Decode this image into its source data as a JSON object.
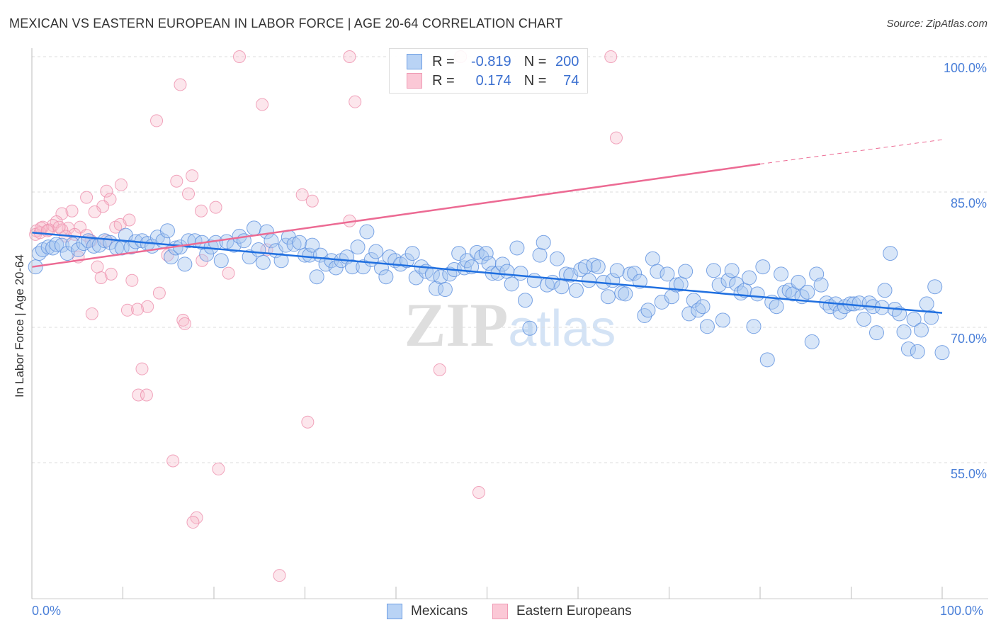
{
  "title": "MEXICAN VS EASTERN EUROPEAN IN LABOR FORCE | AGE 20-64 CORRELATION CHART",
  "source": "Source: ZipAtlas.com",
  "watermark": "ZIPatlas",
  "colors": {
    "blue": "#5b8fdf",
    "blue_fill": "#a9c8f0",
    "pink": "#ee8fac",
    "pink_fill": "#f7b6c8",
    "blue_line": "#1f6fe0",
    "pink_line": "#ec6a93",
    "tick_text": "#4a7fd8"
  },
  "legend": {
    "rows": [
      {
        "r_label": "R =",
        "r_value": "-0.819",
        "n_label": "N =",
        "n_value": "200"
      },
      {
        "r_label": "R =",
        "r_value": "0.174",
        "n_label": "N =",
        "n_value": "74"
      }
    ]
  },
  "chart_data": {
    "type": "scatter",
    "title": "MEXICAN VS EASTERN EUROPEAN IN LABOR FORCE | AGE 20-64 CORRELATION CHART",
    "xlabel": "",
    "ylabel": "In Labor Force | Age 20-64",
    "xlim": [
      0,
      100
    ],
    "ylim": [
      40,
      101
    ],
    "x_tick_labels": [
      "0.0%",
      "100.0%"
    ],
    "y_ticks": [
      100,
      85,
      70,
      55
    ],
    "y_tick_labels": [
      "100.0%",
      "85.0%",
      "70.0%",
      "55.0%"
    ],
    "grid": true,
    "legend_position": "top-center",
    "series": [
      {
        "name": "Mexicans",
        "trend": {
          "x": [
            0,
            100
          ],
          "y": [
            80.5,
            71.6
          ]
        },
        "points": [
          [
            0.4,
            76.7
          ],
          [
            0.8,
            78.2
          ],
          [
            1.2,
            78.6
          ],
          [
            1.8,
            78.9
          ],
          [
            2.3,
            78.8
          ],
          [
            2.7,
            79.2
          ],
          [
            3.3,
            79.1
          ],
          [
            3.9,
            78.2
          ],
          [
            4.5,
            79.2
          ],
          [
            5.1,
            78.6
          ],
          [
            5.7,
            79.3
          ],
          [
            6.2,
            79.6
          ],
          [
            6.8,
            79.0
          ],
          [
            7.4,
            79.1
          ],
          [
            8.0,
            79.6
          ],
          [
            8.6,
            79.4
          ],
          [
            9.3,
            78.8
          ],
          [
            9.9,
            78.8
          ],
          [
            10.3,
            80.2
          ],
          [
            10.9,
            78.9
          ],
          [
            11.4,
            79.5
          ],
          [
            12.1,
            79.6
          ],
          [
            12.7,
            79.3
          ],
          [
            13.2,
            79.0
          ],
          [
            13.8,
            80.0
          ],
          [
            14.4,
            79.6
          ],
          [
            14.9,
            80.7
          ],
          [
            15.3,
            77.8
          ],
          [
            15.8,
            78.8
          ],
          [
            16.3,
            78.9
          ],
          [
            16.8,
            77.0
          ],
          [
            17.2,
            79.6
          ],
          [
            17.9,
            79.6
          ],
          [
            18.7,
            79.4
          ],
          [
            19.2,
            78.1
          ],
          [
            19.7,
            78.9
          ],
          [
            20.2,
            79.4
          ],
          [
            20.8,
            77.4
          ],
          [
            21.4,
            79.5
          ],
          [
            22.2,
            79.1
          ],
          [
            22.8,
            80.1
          ],
          [
            23.3,
            79.6
          ],
          [
            23.9,
            77.8
          ],
          [
            24.4,
            81.0
          ],
          [
            24.9,
            78.6
          ],
          [
            25.4,
            77.2
          ],
          [
            25.8,
            80.6
          ],
          [
            26.3,
            79.6
          ],
          [
            26.8,
            78.5
          ],
          [
            27.4,
            77.4
          ],
          [
            27.9,
            79.1
          ],
          [
            28.2,
            80.0
          ],
          [
            28.8,
            79.2
          ],
          [
            29.4,
            79.4
          ],
          [
            30.0,
            78.0
          ],
          [
            30.5,
            78.0
          ],
          [
            30.8,
            79.1
          ],
          [
            31.3,
            75.6
          ],
          [
            31.7,
            78.0
          ],
          [
            32.3,
            77.0
          ],
          [
            32.9,
            77.4
          ],
          [
            33.4,
            76.6
          ],
          [
            34.0,
            77.4
          ],
          [
            34.6,
            77.8
          ],
          [
            35.2,
            76.7
          ],
          [
            35.8,
            78.9
          ],
          [
            36.4,
            76.7
          ],
          [
            36.8,
            80.6
          ],
          [
            37.3,
            77.5
          ],
          [
            37.8,
            78.4
          ],
          [
            38.4,
            76.6
          ],
          [
            38.9,
            75.6
          ],
          [
            39.3,
            77.8
          ],
          [
            39.9,
            77.4
          ],
          [
            40.5,
            77.0
          ],
          [
            41.2,
            77.4
          ],
          [
            41.8,
            78.2
          ],
          [
            42.2,
            75.5
          ],
          [
            42.8,
            76.7
          ],
          [
            43.3,
            76.2
          ],
          [
            44.0,
            75.9
          ],
          [
            44.4,
            74.3
          ],
          [
            44.9,
            75.6
          ],
          [
            45.4,
            74.2
          ],
          [
            45.9,
            75.9
          ],
          [
            46.4,
            76.4
          ],
          [
            46.9,
            78.2
          ],
          [
            47.5,
            76.6
          ],
          [
            47.8,
            77.4
          ],
          [
            48.3,
            76.7
          ],
          [
            48.9,
            78.3
          ],
          [
            49.4,
            77.8
          ],
          [
            49.9,
            78.2
          ],
          [
            50.2,
            77.1
          ],
          [
            50.6,
            76.0
          ],
          [
            51.2,
            76.0
          ],
          [
            51.7,
            77.0
          ],
          [
            52.2,
            76.2
          ],
          [
            52.7,
            74.8
          ],
          [
            53.3,
            78.8
          ],
          [
            53.7,
            76.0
          ],
          [
            54.2,
            73.0
          ],
          [
            54.7,
            69.9
          ],
          [
            55.2,
            75.2
          ],
          [
            55.8,
            78.0
          ],
          [
            56.2,
            79.4
          ],
          [
            56.6,
            74.7
          ],
          [
            57.2,
            75.0
          ],
          [
            57.7,
            77.6
          ],
          [
            58.2,
            74.5
          ],
          [
            58.7,
            75.9
          ],
          [
            59.2,
            75.8
          ],
          [
            59.8,
            74.1
          ],
          [
            60.3,
            76.4
          ],
          [
            60.8,
            76.7
          ],
          [
            61.2,
            75.2
          ],
          [
            61.7,
            76.9
          ],
          [
            62.2,
            76.7
          ],
          [
            62.8,
            75.0
          ],
          [
            63.3,
            73.4
          ],
          [
            63.8,
            75.2
          ],
          [
            64.3,
            76.3
          ],
          [
            64.8,
            73.8
          ],
          [
            65.2,
            73.7
          ],
          [
            65.7,
            75.9
          ],
          [
            66.2,
            76.0
          ],
          [
            66.8,
            75.1
          ],
          [
            67.3,
            71.3
          ],
          [
            67.7,
            71.9
          ],
          [
            68.2,
            77.6
          ],
          [
            68.7,
            76.2
          ],
          [
            69.2,
            72.8
          ],
          [
            69.8,
            75.9
          ],
          [
            70.3,
            73.4
          ],
          [
            70.8,
            74.7
          ],
          [
            71.3,
            74.8
          ],
          [
            71.8,
            76.2
          ],
          [
            72.2,
            71.5
          ],
          [
            72.7,
            73.0
          ],
          [
            73.2,
            71.9
          ],
          [
            73.7,
            72.3
          ],
          [
            74.2,
            70.1
          ],
          [
            74.9,
            76.3
          ],
          [
            75.5,
            74.7
          ],
          [
            75.9,
            70.8
          ],
          [
            76.5,
            75.2
          ],
          [
            76.9,
            76.3
          ],
          [
            77.4,
            74.8
          ],
          [
            77.9,
            73.8
          ],
          [
            78.3,
            74.1
          ],
          [
            78.8,
            75.5
          ],
          [
            79.3,
            70.1
          ],
          [
            79.7,
            73.7
          ],
          [
            80.3,
            76.7
          ],
          [
            80.8,
            66.4
          ],
          [
            81.3,
            72.8
          ],
          [
            81.8,
            72.3
          ],
          [
            82.3,
            75.9
          ],
          [
            82.7,
            73.9
          ],
          [
            83.2,
            74.1
          ],
          [
            83.6,
            73.7
          ],
          [
            84.2,
            75.0
          ],
          [
            84.6,
            73.4
          ],
          [
            85.2,
            73.9
          ],
          [
            85.7,
            68.4
          ],
          [
            86.2,
            75.9
          ],
          [
            86.7,
            74.7
          ],
          [
            87.3,
            72.7
          ],
          [
            87.7,
            72.3
          ],
          [
            88.3,
            72.6
          ],
          [
            88.8,
            71.7
          ],
          [
            89.3,
            72.3
          ],
          [
            89.9,
            72.6
          ],
          [
            90.3,
            72.6
          ],
          [
            90.9,
            72.7
          ],
          [
            91.4,
            70.9
          ],
          [
            92.0,
            72.7
          ],
          [
            92.4,
            72.3
          ],
          [
            92.8,
            69.4
          ],
          [
            93.4,
            72.2
          ],
          [
            93.7,
            74.1
          ],
          [
            94.3,
            78.2
          ],
          [
            94.8,
            72.0
          ],
          [
            95.3,
            71.5
          ],
          [
            95.8,
            69.5
          ],
          [
            96.3,
            67.6
          ],
          [
            96.9,
            70.9
          ],
          [
            97.3,
            67.3
          ],
          [
            97.7,
            69.7
          ],
          [
            98.3,
            72.6
          ],
          [
            98.8,
            71.1
          ],
          [
            99.2,
            74.5
          ],
          [
            100.0,
            67.2
          ]
        ]
      },
      {
        "name": "Eastern Europeans",
        "trend": {
          "x": [
            0,
            80
          ],
          "y": [
            76.7,
            88.1
          ],
          "dashed_to": {
            "x": 100,
            "y": 90.8
          }
        },
        "points": [
          [
            22.8,
            100
          ],
          [
            34.9,
            100
          ],
          [
            63.6,
            100
          ],
          [
            47.1,
            100
          ],
          [
            16.3,
            96.9
          ],
          [
            25.3,
            94.7
          ],
          [
            35.5,
            95.0
          ],
          [
            13.7,
            92.9
          ],
          [
            64.2,
            91.0
          ],
          [
            17.6,
            86.8
          ],
          [
            15.9,
            86.2
          ],
          [
            9.8,
            85.8
          ],
          [
            8.2,
            85.1
          ],
          [
            17.2,
            84.8
          ],
          [
            6.0,
            84.4
          ],
          [
            8.6,
            84.2
          ],
          [
            29.7,
            84.7
          ],
          [
            30.8,
            84.0
          ],
          [
            7.8,
            83.4
          ],
          [
            20.2,
            83.3
          ],
          [
            18.6,
            82.9
          ],
          [
            10.7,
            81.9
          ],
          [
            6.9,
            82.8
          ],
          [
            3.3,
            82.6
          ],
          [
            4.4,
            82.9
          ],
          [
            34.9,
            81.8
          ],
          [
            9.2,
            81.1
          ],
          [
            2.7,
            81.7
          ],
          [
            2.3,
            81.3
          ],
          [
            5.3,
            81.1
          ],
          [
            4.0,
            81.0
          ],
          [
            1.2,
            81.1
          ],
          [
            0.5,
            80.7
          ],
          [
            0.4,
            80.3
          ],
          [
            1.9,
            80.8
          ],
          [
            6.0,
            80.2
          ],
          [
            6.5,
            79.6
          ],
          [
            3.3,
            80.8
          ],
          [
            5.1,
            77.8
          ],
          [
            7.2,
            76.7
          ],
          [
            7.6,
            75.5
          ],
          [
            8.7,
            75.9
          ],
          [
            11.0,
            75.2
          ],
          [
            14.0,
            73.8
          ],
          [
            6.6,
            71.5
          ],
          [
            10.5,
            71.9
          ],
          [
            11.6,
            72.0
          ],
          [
            12.7,
            72.3
          ],
          [
            16.6,
            70.8
          ],
          [
            16.8,
            70.4
          ],
          [
            14.9,
            78.0
          ],
          [
            18.7,
            77.4
          ],
          [
            21.6,
            76.0
          ],
          [
            25.8,
            78.6
          ],
          [
            12.1,
            65.4
          ],
          [
            44.8,
            65.3
          ],
          [
            11.7,
            62.5
          ],
          [
            12.6,
            62.5
          ],
          [
            30.3,
            59.5
          ],
          [
            15.5,
            55.2
          ],
          [
            20.5,
            54.3
          ],
          [
            49.1,
            51.7
          ],
          [
            18.1,
            48.9
          ],
          [
            17.7,
            48.4
          ],
          [
            27.2,
            42.5
          ],
          [
            0.9,
            80.5
          ],
          [
            1.0,
            81.0
          ],
          [
            1.7,
            80.7
          ],
          [
            3.7,
            80.1
          ],
          [
            4.7,
            80.3
          ],
          [
            3.0,
            81.1
          ],
          [
            8.2,
            79.6
          ],
          [
            9.7,
            81.4
          ]
        ]
      }
    ]
  }
}
